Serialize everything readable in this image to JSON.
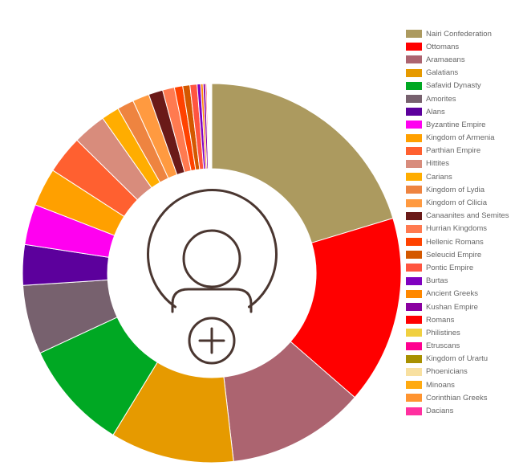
{
  "chart_data": {
    "type": "pie",
    "style": "donut",
    "center_icon": "add-user-icon",
    "legend_position": "right",
    "categories": [
      "Nairi Confederation",
      "Ottomans",
      "Aramaeans",
      "Galatians",
      "Safavid Dynasty",
      "Amorites",
      "Alans",
      "Byzantine Empire",
      "Kingdom of Armenia",
      "Parthian Empire",
      "Hittites",
      "Carians",
      "Kingdom of Lydia",
      "Kingdom of Cilicia",
      "Canaanites and Semites",
      "Hurrian Kingdoms",
      "Hellenic Romans",
      "Seleucid Empire",
      "Pontic Empire",
      "Burtas",
      "Ancient Greeks",
      "Kushan Empire",
      "Romans",
      "Philistines",
      "Etruscans",
      "Kingdom of Urartu",
      "Phoenicians",
      "Minoans",
      "Corinthian Greeks",
      "Dacians"
    ],
    "values": [
      100,
      79,
      58,
      52,
      46,
      29,
      17,
      17,
      16,
      16,
      14,
      7.5,
      7,
      7,
      6,
      5,
      3.5,
      3,
      3,
      1.5,
      1,
      1,
      0.5,
      0.3,
      0.3,
      0.3,
      0.3,
      0.3,
      0.3,
      0.3
    ],
    "colors": [
      "#ac9a5f",
      "#ff0000",
      "#ac6470",
      "#e69a00",
      "#00a823",
      "#77616e",
      "#5c009c",
      "#ff00f0",
      "#ffa000",
      "#ff6030",
      "#d88c7c",
      "#ffad00",
      "#ee8440",
      "#ff9a40",
      "#6a1a18",
      "#ff7a50",
      "#ff4200",
      "#d45800",
      "#ff5540",
      "#8000c0",
      "#ff8800",
      "#8a00a0",
      "#ff0000",
      "#f0d040",
      "#ff0090",
      "#a89000",
      "#f8e0a0",
      "#ffaa10",
      "#ff9430",
      "#ff30a0"
    ]
  }
}
